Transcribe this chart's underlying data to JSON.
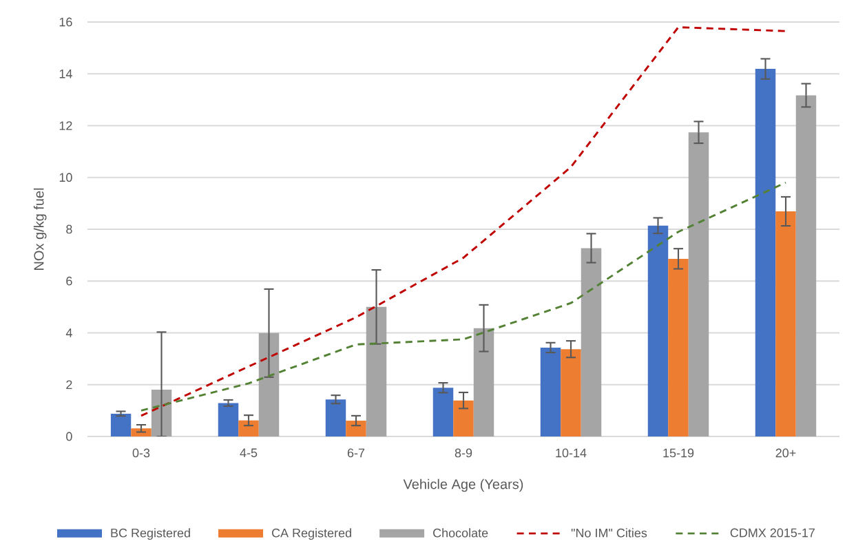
{
  "chart_data": {
    "type": "bar",
    "categories": [
      "0-3",
      "4-5",
      "6-7",
      "8-9",
      "10-14",
      "15-19",
      "20+"
    ],
    "series": [
      {
        "name": "BC Registered",
        "color": "#4472c4",
        "values": [
          0.88,
          1.29,
          1.43,
          1.88,
          3.43,
          8.14,
          14.19
        ],
        "errors": [
          0.09,
          0.12,
          0.16,
          0.19,
          0.19,
          0.3,
          0.39
        ]
      },
      {
        "name": "CA Registered",
        "color": "#ed7d31",
        "values": [
          0.31,
          0.62,
          0.61,
          1.39,
          3.37,
          6.86,
          8.69
        ],
        "errors": [
          0.14,
          0.2,
          0.19,
          0.31,
          0.32,
          0.39,
          0.56
        ]
      },
      {
        "name": "Chocolate",
        "color": "#a5a5a5",
        "values": [
          1.81,
          3.99,
          5.0,
          4.18,
          7.27,
          11.74,
          13.17
        ],
        "errors": [
          [
            0,
            4.03
          ],
          1.7,
          1.43,
          0.9,
          0.56,
          0.42,
          0.45
        ]
      },
      {
        "name": "\"No IM\" Cities",
        "color": "#c00000",
        "type": "line",
        "line_style": "dashed",
        "values": [
          0.8,
          2.7,
          4.6,
          6.9,
          10.4,
          15.8,
          15.65
        ]
      },
      {
        "name": "CDMX 2015-17",
        "color": "#548235",
        "type": "line",
        "line_style": "dashed",
        "values": [
          1.0,
          2.05,
          3.55,
          3.75,
          5.15,
          7.9,
          9.8
        ]
      }
    ],
    "xlabel": "Vehicle Age (Years)",
    "ylabel": "NOx g/kg fuel",
    "ylim": [
      0,
      16
    ],
    "yticks": [
      0,
      2,
      4,
      6,
      8,
      10,
      12,
      14,
      16
    ],
    "grid": "y",
    "legend": "bottom"
  }
}
